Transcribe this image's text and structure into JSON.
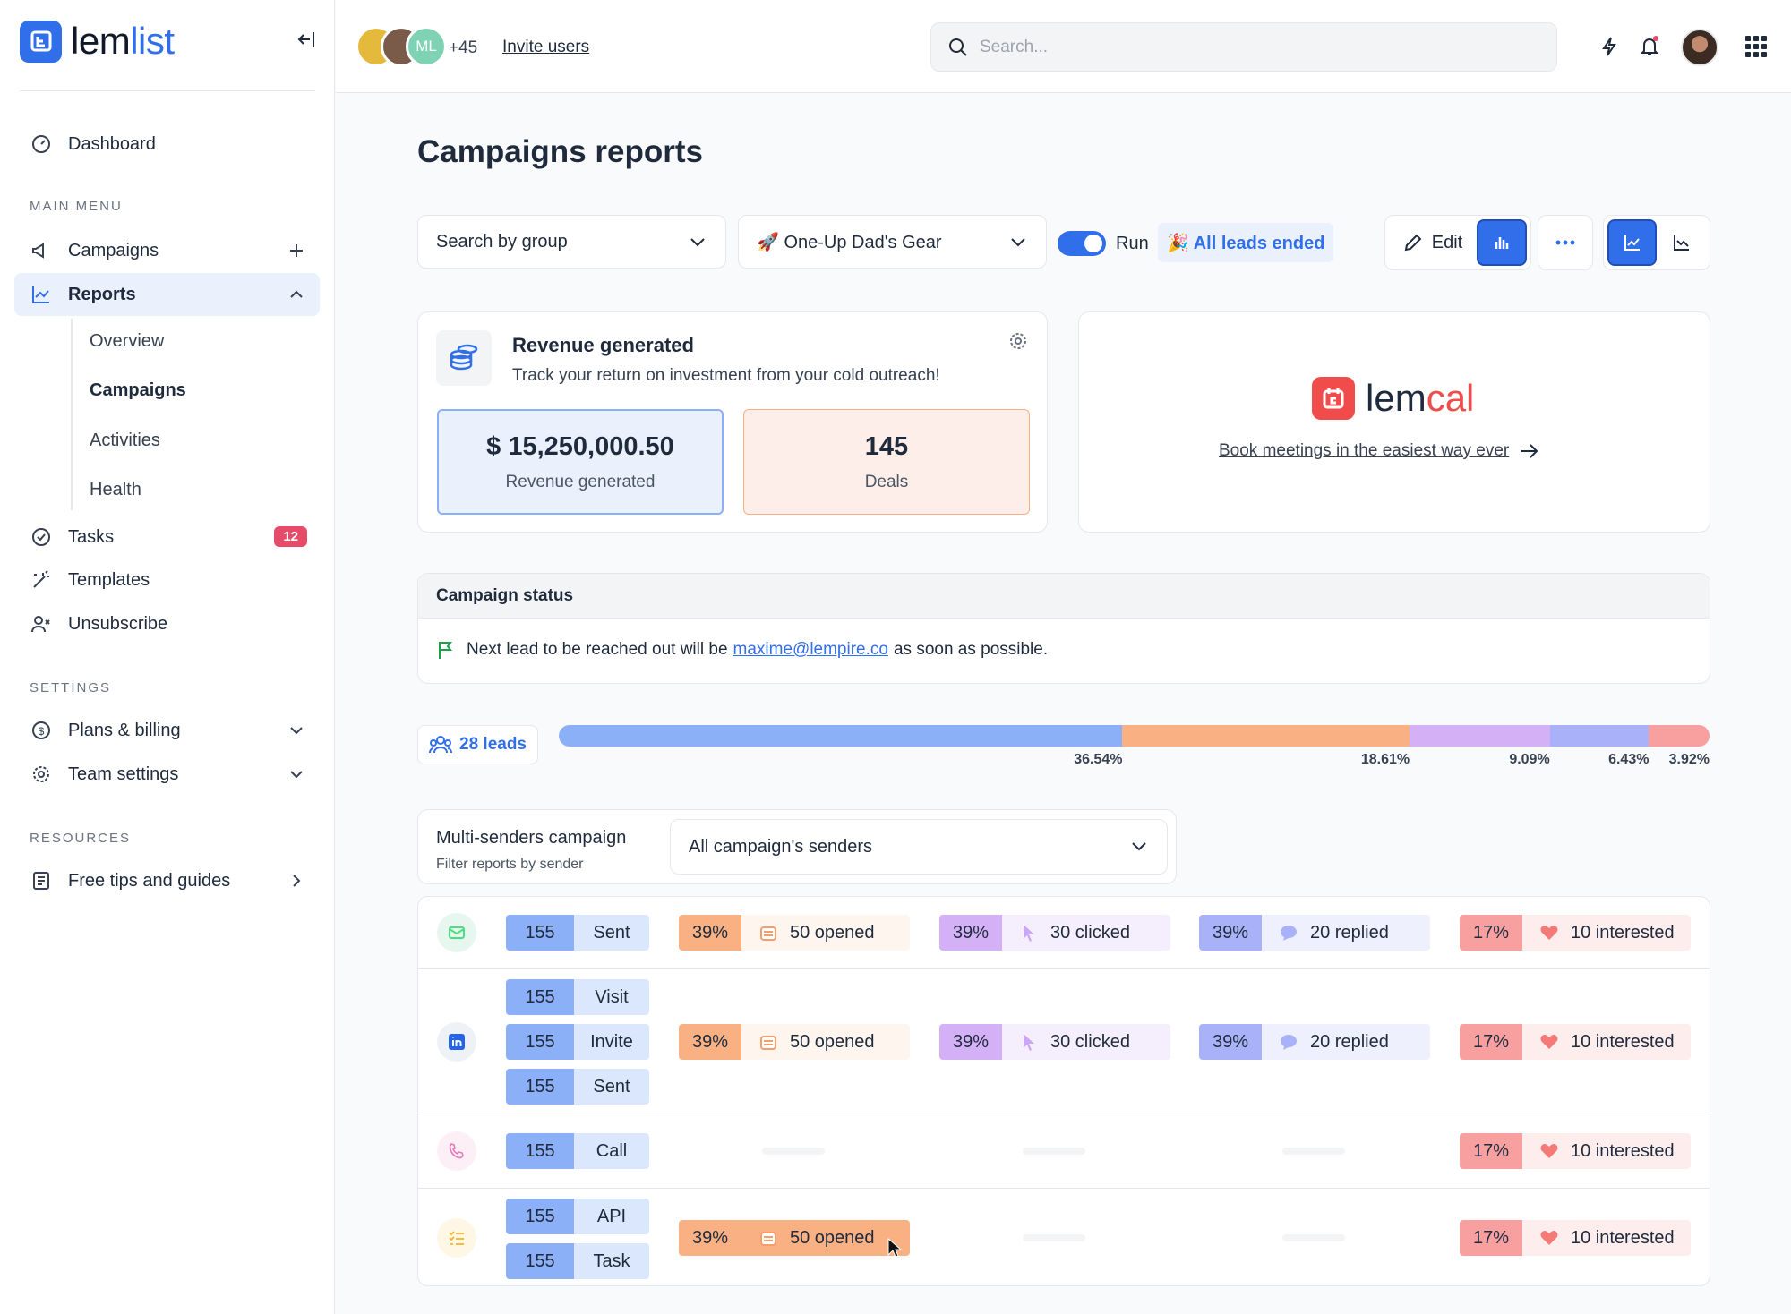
{
  "brand": {
    "logo_text_a": "lem",
    "logo_text_b": "list"
  },
  "sidebar": {
    "dashboard": "Dashboard",
    "main_menu_title": "MAIN MENU",
    "campaigns": "Campaigns",
    "reports": "Reports",
    "report_sub": [
      "Overview",
      "Campaigns",
      "Activities",
      "Health"
    ],
    "tasks": "Tasks",
    "tasks_badge": "12",
    "templates": "Templates",
    "unsubscribe": "Unsubscribe",
    "settings_title": "SETTINGS",
    "plans": "Plans & billing",
    "team": "Team settings",
    "resources_title": "RESOURCES",
    "tips": "Free tips and guides"
  },
  "topbar": {
    "avatar_initials": "ML",
    "more_count": "+45",
    "invite": "Invite users",
    "search_placeholder": "Search..."
  },
  "page": {
    "title": "Campaigns reports",
    "group_select": "Search by group",
    "campaign_select": "🚀 One-Up Dad's Gear",
    "run_label": "Run",
    "status_chip": "🎉 All leads ended",
    "edit": "Edit"
  },
  "revenue": {
    "title": "Revenue generated",
    "subtitle": "Track your return on investment from your cold outreach!",
    "amount": "$ 15,250,000.50",
    "amount_label": "Revenue generated",
    "deals": "145",
    "deals_label": "Deals"
  },
  "lemcal": {
    "text_a": "lem",
    "text_b": "cal",
    "link": "Book meetings in the easiest way ever"
  },
  "campaign_status": {
    "title": "Campaign status",
    "before": "Next lead to be reached out will be",
    "email": "maxime@lempire.co",
    "after": "as soon as possible."
  },
  "leads": {
    "label": "28 leads",
    "segments": [
      {
        "pct_value": 36.54,
        "pct": "36.54%",
        "color": "#8cb0f7"
      },
      {
        "pct_value": 18.61,
        "pct": "18.61%",
        "color": "#f9b183"
      },
      {
        "pct_value": 9.09,
        "pct": "9.09%",
        "color": "#d4b1f7"
      },
      {
        "pct_value": 6.43,
        "pct": "6.43%",
        "color": "#a9b2f9"
      },
      {
        "pct_value": 3.92,
        "pct": "3.92%",
        "color": "#f7a09f"
      }
    ]
  },
  "multi": {
    "title": "Multi-senders campaign",
    "subtitle": "Filter reports by sender",
    "select": "All campaign's senders"
  },
  "rows": {
    "email": {
      "sent_n": "155",
      "sent": "Sent"
    },
    "linkedin": {
      "visit_n": "155",
      "visit": "Visit",
      "invite_n": "155",
      "invite": "Invite",
      "sent_n": "155",
      "sent": "Sent"
    },
    "call": {
      "n": "155",
      "label": "Call"
    },
    "api": {
      "api_n": "155",
      "api": "API",
      "task_n": "155",
      "task": "Task"
    },
    "opened_pct": "39%",
    "opened": "50 opened",
    "clicked_pct": "39%",
    "clicked": "30 clicked",
    "replied_pct": "39%",
    "replied": "20 replied",
    "interested_pct": "17%",
    "interested": "10 interested"
  }
}
